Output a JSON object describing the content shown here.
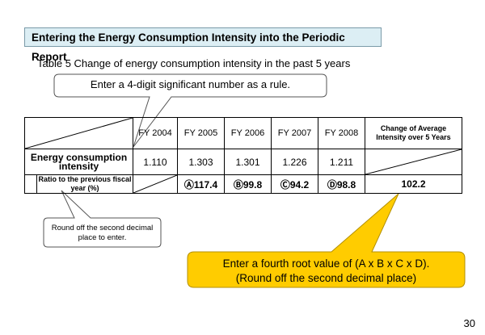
{
  "header": {
    "title": "Entering the Energy Consumption Intensity into the Periodic Report"
  },
  "subtitle": "Table 5 Change of energy consumption intensity in the past 5 years",
  "callout_top": "Enter a 4-digit significant number as a rule.",
  "callout_round": "Round off the second decimal place to enter.",
  "callout_root": {
    "line1": "Enter a fourth root value of (A x B x C x D).",
    "line2": "(Round off the second decimal place)"
  },
  "table": {
    "years": [
      "FY 2004",
      "FY 2005",
      "FY 2006",
      "FY 2007",
      "FY 2008"
    ],
    "avg_header": "Change of Average Intensity over 5 Years",
    "energy_row": {
      "label": "Energy consumption intensity",
      "values": [
        "1.110",
        "1.303",
        "1.301",
        "1.226",
        "1.211"
      ]
    },
    "ratio_row": {
      "label": "Ratio to the previous fiscal year (%)",
      "values": [
        "Ⓐ117.4",
        "Ⓑ99.8",
        "Ⓒ94.2",
        "Ⓓ98.8"
      ],
      "average": "102.2"
    }
  },
  "page_number": "30",
  "colors": {
    "header_bg": "#dceef4",
    "callout_yellow": "#ffcc00"
  }
}
